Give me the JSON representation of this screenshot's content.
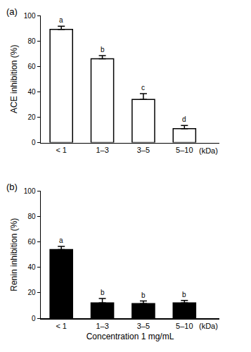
{
  "chart_data": [
    {
      "type": "bar",
      "panel": "(a)",
      "ylabel": "ACE inhibition (%)",
      "categories": [
        "< 1",
        "1–3",
        "3–5",
        "5–10"
      ],
      "x_unit": "(kDa)",
      "values": [
        89,
        66,
        34,
        11
      ],
      "errors": [
        2.5,
        2.5,
        4.5,
        2.5
      ],
      "letters": [
        "a",
        "b",
        "c",
        "d"
      ],
      "color": "#ffffff",
      "ylim": [
        0,
        100
      ],
      "yticks": [
        0,
        20,
        40,
        60,
        80,
        100
      ]
    },
    {
      "type": "bar",
      "panel": "(b)",
      "ylabel": "Renin inhibition (%)",
      "xlabel": "Concentration 1 mg/mL",
      "categories": [
        "< 1",
        "1–3",
        "3–5",
        "5–10"
      ],
      "x_unit": "(kDa)",
      "values": [
        54,
        12,
        11.5,
        12
      ],
      "errors": [
        2.5,
        3.5,
        2,
        2
      ],
      "letters": [
        "a",
        "b",
        "b",
        "b"
      ],
      "color": "#000000",
      "ylim": [
        0,
        100
      ],
      "yticks": [
        0,
        20,
        40,
        60,
        80,
        100
      ]
    }
  ]
}
